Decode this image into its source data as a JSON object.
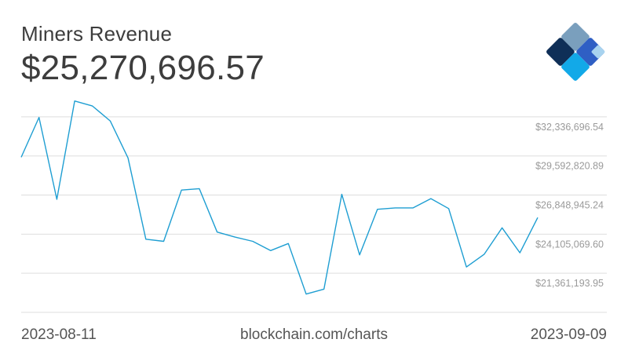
{
  "header": {
    "title": "Miners Revenue",
    "current_value": "$25,270,696.57"
  },
  "footer": {
    "start_date": "2023-08-11",
    "source": "blockchain.com/charts",
    "end_date": "2023-09-09"
  },
  "colors": {
    "line": "#1e9ed2",
    "grid": "#dddddd",
    "tick_text": "#9a9a9a",
    "text": "#3d3d3d"
  },
  "logo": {
    "name": "blockchain-logo"
  },
  "chart_data": {
    "type": "line",
    "title": "Miners Revenue",
    "xlabel": "",
    "ylabel": "",
    "x": [
      "2023-08-11",
      "2023-08-12",
      "2023-08-13",
      "2023-08-14",
      "2023-08-15",
      "2023-08-16",
      "2023-08-17",
      "2023-08-18",
      "2023-08-19",
      "2023-08-20",
      "2023-08-21",
      "2023-08-22",
      "2023-08-23",
      "2023-08-24",
      "2023-08-25",
      "2023-08-26",
      "2023-08-27",
      "2023-08-28",
      "2023-08-29",
      "2023-08-30",
      "2023-08-31",
      "2023-09-01",
      "2023-09-02",
      "2023-09-03",
      "2023-09-04",
      "2023-09-05",
      "2023-09-06",
      "2023-09-07",
      "2023-09-08",
      "2023-09-09"
    ],
    "values": [
      29500000,
      32300000,
      26550000,
      33450000,
      33100000,
      32050000,
      29450000,
      23750000,
      23600000,
      27200000,
      27300000,
      24250000,
      23900000,
      23600000,
      22950000,
      23450000,
      19900000,
      20250000,
      26900000,
      22650000,
      25850000,
      25950000,
      25950000,
      26600000,
      25900000,
      21800000,
      22700000,
      24550000,
      22800000,
      25270696.57
    ],
    "y_ticks": [
      "$32,336,696.54",
      "$29,592,820.89",
      "$26,848,945.24",
      "$24,105,069.60",
      "$21,361,193.95"
    ],
    "y_tick_values": [
      32336696.54,
      29592820.89,
      26848945.24,
      24105069.6,
      21361193.95
    ],
    "ylim": [
      18617318.3,
      33708634.37
    ],
    "grid": true,
    "legend": "none"
  }
}
